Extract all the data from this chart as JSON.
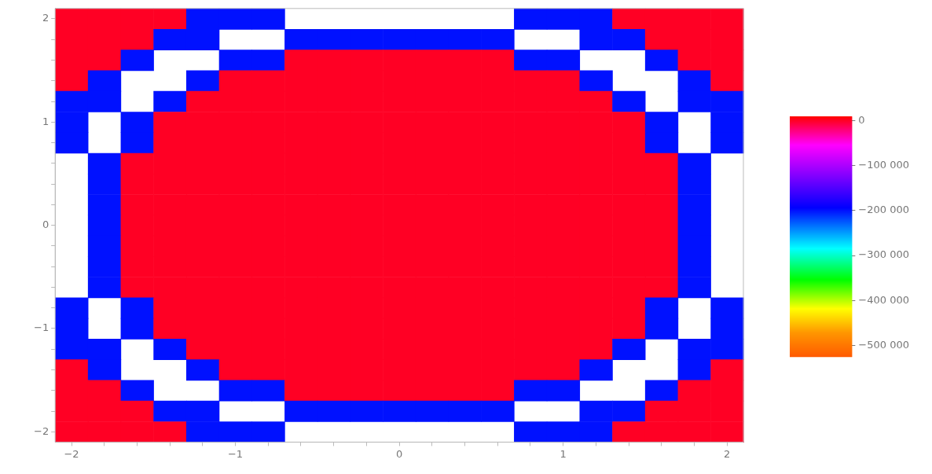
{
  "chart_data": {
    "type": "heatmap",
    "categories": [
      "−2",
      null,
      null,
      null,
      null,
      "−1",
      null,
      null,
      null,
      null,
      "0",
      null,
      null,
      null,
      null,
      "1",
      null,
      null,
      null,
      null,
      "2"
    ],
    "y_categories": [
      "2",
      null,
      null,
      null,
      null,
      "1",
      null,
      null,
      null,
      null,
      "0",
      null,
      null,
      null,
      null,
      "−1",
      null,
      null,
      null,
      null,
      "−2"
    ],
    "clim": [
      -525000,
      9000
    ],
    "cticks": [
      0,
      {
        "value": -100000,
        "label": "−100 000"
      },
      {
        "value": -200000,
        "label": "−200 000"
      },
      {
        "value": -300000,
        "label": "−300 000"
      },
      {
        "value": -400000,
        "label": "−400 000"
      },
      {
        "value": -500000,
        "label": "−500 000"
      }
    ],
    "cells": [
      [
        0,
        0,
        0,
        0,
        -200000,
        -200000,
        -200000,
        null,
        null,
        null,
        null,
        null,
        null,
        null,
        -200000,
        -200000,
        -200000,
        0,
        0,
        0,
        0
      ],
      [
        0,
        0,
        0,
        -200000,
        -200000,
        null,
        null,
        -200000,
        -200000,
        -200000,
        -200000,
        -200000,
        -200000,
        -200000,
        null,
        null,
        -200000,
        -200000,
        0,
        0,
        0
      ],
      [
        0,
        0,
        -200000,
        null,
        null,
        -200000,
        -200000,
        0,
        0,
        0,
        0,
        0,
        0,
        0,
        -200000,
        -200000,
        null,
        null,
        -200000,
        0,
        0
      ],
      [
        0,
        -200000,
        null,
        null,
        -200000,
        0,
        0,
        0,
        0,
        0,
        0,
        0,
        0,
        0,
        0,
        0,
        -200000,
        null,
        null,
        -200000,
        0
      ],
      [
        -200000,
        -200000,
        null,
        -200000,
        0,
        0,
        0,
        0,
        0,
        0,
        0,
        0,
        0,
        0,
        0,
        0,
        0,
        -200000,
        null,
        -200000,
        -200000
      ],
      [
        -200000,
        null,
        -200000,
        0,
        0,
        0,
        0,
        0,
        0,
        0,
        0,
        0,
        0,
        0,
        0,
        0,
        0,
        0,
        -200000,
        null,
        -200000
      ],
      [
        -200000,
        null,
        -200000,
        0,
        0,
        0,
        0,
        0,
        0,
        0,
        0,
        0,
        0,
        0,
        0,
        0,
        0,
        0,
        -200000,
        null,
        -200000
      ],
      [
        null,
        -200000,
        0,
        0,
        0,
        0,
        0,
        0,
        0,
        0,
        0,
        0,
        0,
        0,
        0,
        0,
        0,
        0,
        0,
        -200000,
        null
      ],
      [
        null,
        -200000,
        0,
        0,
        0,
        0,
        0,
        0,
        0,
        0,
        0,
        0,
        0,
        0,
        0,
        0,
        0,
        0,
        0,
        -200000,
        null
      ],
      [
        null,
        -200000,
        0,
        0,
        0,
        0,
        0,
        0,
        0,
        0,
        0,
        0,
        0,
        0,
        0,
        0,
        0,
        0,
        0,
        -200000,
        null
      ],
      [
        null,
        -200000,
        0,
        0,
        0,
        0,
        0,
        0,
        0,
        0,
        0,
        0,
        0,
        0,
        0,
        0,
        0,
        0,
        0,
        -200000,
        null
      ],
      [
        null,
        -200000,
        0,
        0,
        0,
        0,
        0,
        0,
        0,
        0,
        0,
        0,
        0,
        0,
        0,
        0,
        0,
        0,
        0,
        -200000,
        null
      ],
      [
        null,
        -200000,
        0,
        0,
        0,
        0,
        0,
        0,
        0,
        0,
        0,
        0,
        0,
        0,
        0,
        0,
        0,
        0,
        0,
        -200000,
        null
      ],
      [
        null,
        -200000,
        0,
        0,
        0,
        0,
        0,
        0,
        0,
        0,
        0,
        0,
        0,
        0,
        0,
        0,
        0,
        0,
        0,
        -200000,
        null
      ],
      [
        -200000,
        null,
        -200000,
        0,
        0,
        0,
        0,
        0,
        0,
        0,
        0,
        0,
        0,
        0,
        0,
        0,
        0,
        0,
        -200000,
        null,
        -200000
      ],
      [
        -200000,
        null,
        -200000,
        0,
        0,
        0,
        0,
        0,
        0,
        0,
        0,
        0,
        0,
        0,
        0,
        0,
        0,
        0,
        -200000,
        null,
        -200000
      ],
      [
        -200000,
        -200000,
        null,
        -200000,
        0,
        0,
        0,
        0,
        0,
        0,
        0,
        0,
        0,
        0,
        0,
        0,
        0,
        -200000,
        null,
        -200000,
        -200000
      ],
      [
        0,
        -200000,
        null,
        null,
        -200000,
        0,
        0,
        0,
        0,
        0,
        0,
        0,
        0,
        0,
        0,
        0,
        -200000,
        null,
        null,
        -200000,
        0
      ],
      [
        0,
        0,
        -200000,
        null,
        null,
        -200000,
        -200000,
        0,
        0,
        0,
        0,
        0,
        0,
        0,
        -200000,
        -200000,
        null,
        null,
        -200000,
        0,
        0
      ],
      [
        0,
        0,
        0,
        -200000,
        -200000,
        null,
        null,
        -200000,
        -200000,
        -200000,
        -200000,
        -200000,
        -200000,
        -200000,
        null,
        null,
        -200000,
        -200000,
        0,
        0,
        0
      ],
      [
        0,
        0,
        0,
        0,
        -200000,
        -200000,
        -200000,
        null,
        null,
        null,
        null,
        null,
        null,
        null,
        -200000,
        -200000,
        -200000,
        0,
        0,
        0,
        0
      ]
    ]
  }
}
